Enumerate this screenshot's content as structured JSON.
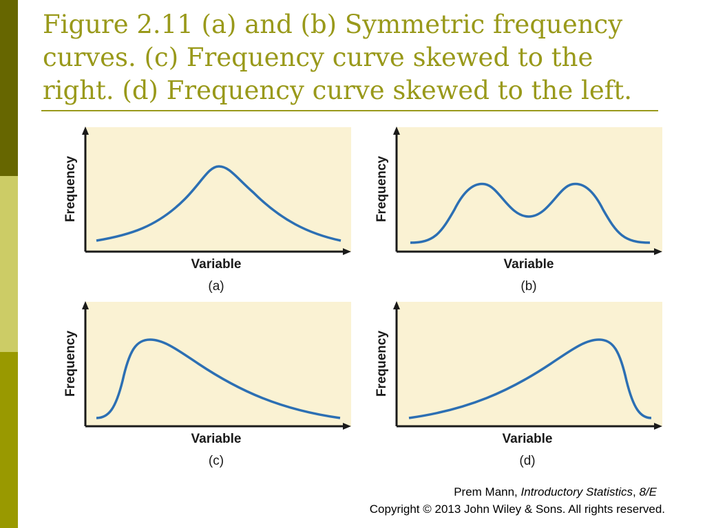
{
  "slide": {
    "title_lines": [
      "Figure 2.11 (a) and (b) Symmetric frequency",
      "curves. (c) Frequency curve skewed to the",
      "right. (d) Frequency curve skewed to the left."
    ],
    "colors": {
      "title": "#99991a",
      "bar_top": "#666600",
      "bar_mid": "#cccc66",
      "bar_bottom": "#999900",
      "plot_bg": "#faf2d3",
      "curve": "#2c6fb3"
    }
  },
  "panels": [
    {
      "ylabel": "Frequency",
      "xlabel": "Variable",
      "caption": "(a)",
      "shape": "symmetric-unimodal"
    },
    {
      "ylabel": "Frequency",
      "xlabel": "Variable",
      "caption": "(b)",
      "shape": "symmetric-bimodal"
    },
    {
      "ylabel": "Frequency",
      "xlabel": "Variable",
      "caption": "(c)",
      "shape": "skewed-right"
    },
    {
      "ylabel": "Frequency",
      "xlabel": "Variable",
      "caption": "(d)",
      "shape": "skewed-left"
    }
  ],
  "footer": {
    "author": "Prem Mann, ",
    "book": "Introductory Statistics",
    "sep": ", ",
    "edition": "8/E",
    "copyright": "Copyright © 2013 John Wiley & Sons. All rights reserved."
  }
}
